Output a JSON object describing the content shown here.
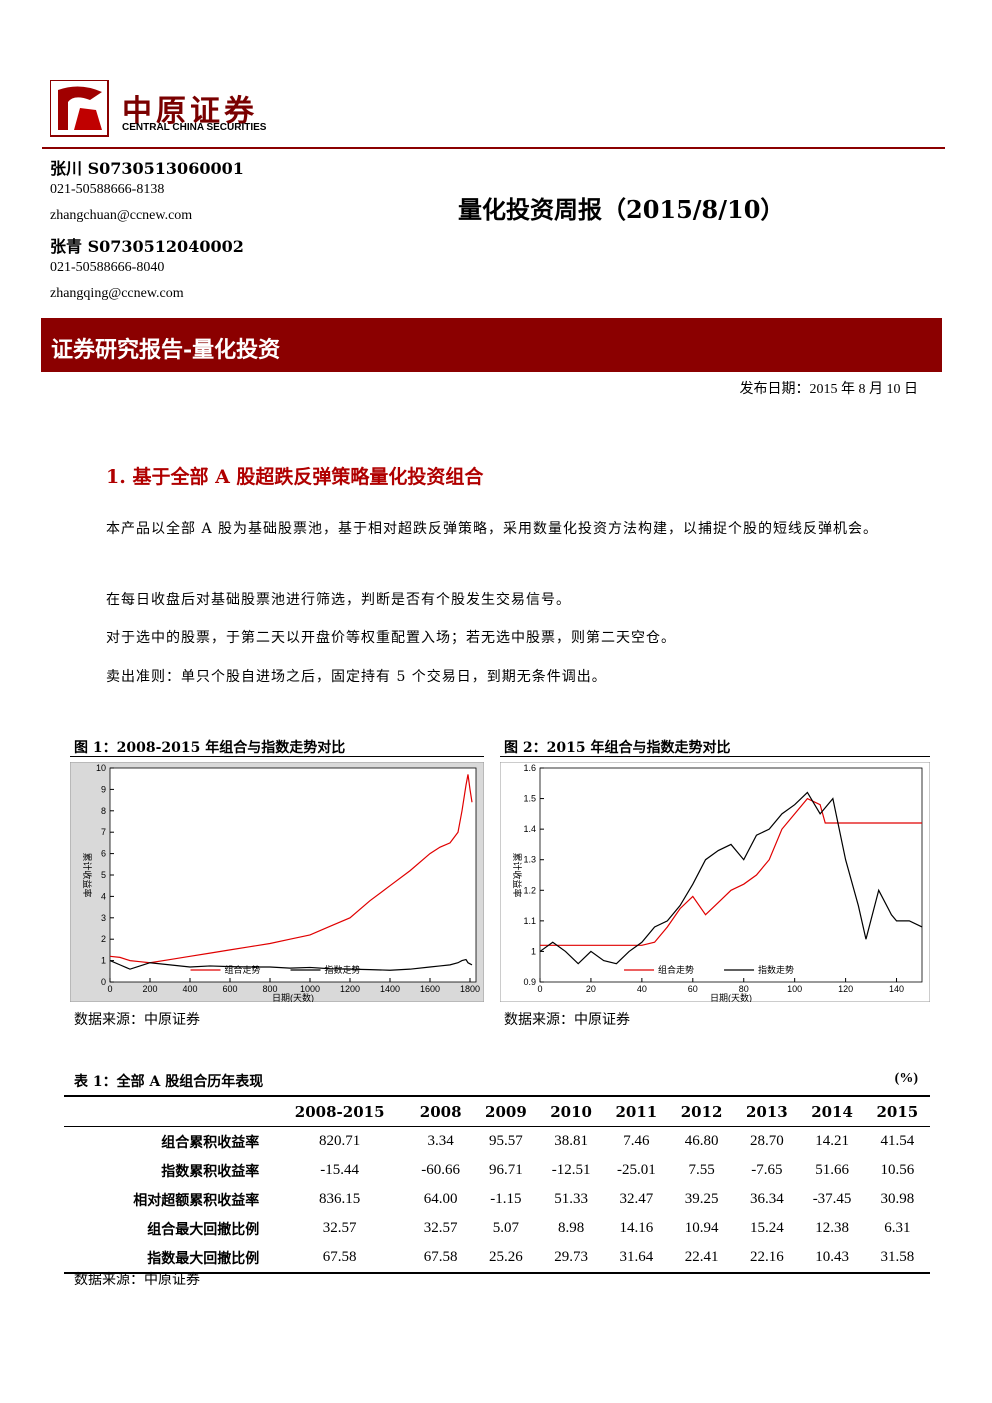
{
  "header": {
    "company_cn": "中原证券",
    "company_en": "CENTRAL CHINA SECURITIES"
  },
  "analysts": [
    {
      "name": "张川 S0730513060001",
      "phone": "021-50588666-8138",
      "email": "zhangchuan@ccnew.com"
    },
    {
      "name": "张青 S0730512040002",
      "phone": "021-50588666-8040",
      "email": "zhangqing@ccnew.com"
    }
  ],
  "report_title": "量化投资周报（2015/8/10）",
  "banner": "证券研究报告-量化投资",
  "publish_date": "发布日期：2015 年 8 月 10 日",
  "section": {
    "heading": "1. 基于全部 A 股超跌反弹策略量化投资组合",
    "paragraphs": [
      "本产品以全部 A 股为基础股票池，基于相对超跌反弹策略，采用数量化投资方法构建，以捕捉个股的短线反弹机会。",
      "在每日收盘后对基础股票池进行筛选，判断是否有个股发生交易信号。",
      "对于选中的股票，于第二天以开盘价等权重配置入场；若无选中股票，则第二天空仓。",
      "卖出准则：单只个股自进场之后，固定持有 5 个交易日，到期无条件调出。"
    ]
  },
  "figures": [
    {
      "caption": "图 1：2008-2015 年组合与指数走势对比",
      "source": "数据来源：中原证券",
      "chart_data": {
        "type": "line",
        "x_label": "日期(天数)",
        "y_label": "累计收益率",
        "x": [
          0,
          50,
          100,
          150,
          200,
          300,
          400,
          500,
          600,
          700,
          800,
          900,
          1000,
          1100,
          1200,
          1300,
          1400,
          1500,
          1600,
          1650,
          1700,
          1740,
          1760,
          1780,
          1790,
          1800,
          1810
        ],
        "series": [
          {
            "name": "组合走势",
            "color": "#e00000",
            "values": [
              1.2,
              1.15,
              1.0,
              0.95,
              0.9,
              1.05,
              1.2,
              1.35,
              1.5,
              1.65,
              1.8,
              2.0,
              2.2,
              2.6,
              3.0,
              3.8,
              4.5,
              5.2,
              6.0,
              6.3,
              6.5,
              7.0,
              8.0,
              9.2,
              9.7,
              9.0,
              8.4
            ]
          },
          {
            "name": "指数走势",
            "color": "#000000",
            "values": [
              1.0,
              0.8,
              0.6,
              0.75,
              0.9,
              0.8,
              0.7,
              0.75,
              0.72,
              0.7,
              0.7,
              0.65,
              0.68,
              0.62,
              0.6,
              0.58,
              0.55,
              0.6,
              0.7,
              0.75,
              0.8,
              0.9,
              1.0,
              1.05,
              0.9,
              0.85,
              0.8
            ]
          }
        ],
        "xlim": [
          0,
          1830
        ],
        "xticks": [
          0,
          200,
          400,
          600,
          800,
          1000,
          1200,
          1400,
          1600,
          1800
        ],
        "ylim": [
          0,
          10
        ],
        "yticks": [
          0,
          1,
          2,
          3,
          4,
          5,
          6,
          7,
          8,
          9,
          10
        ]
      }
    },
    {
      "caption": "图 2：2015 年组合与指数走势对比",
      "source": "数据来源：中原证券",
      "chart_data": {
        "type": "line",
        "x_label": "日期(天数)",
        "y_label": "累计收益率",
        "x": [
          0,
          5,
          10,
          15,
          20,
          25,
          30,
          35,
          40,
          45,
          50,
          55,
          60,
          65,
          70,
          75,
          80,
          85,
          90,
          95,
          100,
          105,
          110,
          112,
          115,
          120,
          125,
          128,
          133,
          138,
          140,
          145,
          150
        ],
        "series": [
          {
            "name": "组合走势",
            "color": "#e00000",
            "values": [
              1.02,
              1.02,
              1.02,
              1.02,
              1.02,
              1.02,
              1.02,
              1.02,
              1.02,
              1.03,
              1.08,
              1.14,
              1.18,
              1.12,
              1.16,
              1.2,
              1.22,
              1.25,
              1.3,
              1.4,
              1.45,
              1.5,
              1.48,
              1.42,
              1.42,
              1.42,
              1.42,
              1.42,
              1.42,
              1.42,
              1.42,
              1.42,
              1.42
            ]
          },
          {
            "name": "指数走势",
            "color": "#000000",
            "values": [
              1.0,
              1.03,
              1.0,
              0.96,
              1.0,
              0.97,
              0.96,
              1.0,
              1.03,
              1.08,
              1.1,
              1.15,
              1.22,
              1.3,
              1.33,
              1.35,
              1.3,
              1.38,
              1.4,
              1.45,
              1.48,
              1.52,
              1.45,
              1.47,
              1.5,
              1.3,
              1.15,
              1.04,
              1.2,
              1.12,
              1.1,
              1.1,
              1.08
            ]
          }
        ],
        "xlim": [
          0,
          150
        ],
        "xticks": [
          0,
          20,
          40,
          60,
          80,
          100,
          120,
          140
        ],
        "ylim": [
          0.9,
          1.6
        ],
        "yticks": [
          0.9,
          1,
          1.1,
          1.2,
          1.3,
          1.4,
          1.5,
          1.6
        ]
      }
    }
  ],
  "table": {
    "caption": "表 1：全部 A 股组合历年表现",
    "unit": "(%)",
    "columns": [
      "2008-2015",
      "2008",
      "2009",
      "2010",
      "2011",
      "2012",
      "2013",
      "2014",
      "2015"
    ],
    "rows": [
      [
        "组合累积收益率",
        "820.71",
        "3.34",
        "95.57",
        "38.81",
        "7.46",
        "46.80",
        "28.70",
        "14.21",
        "41.54"
      ],
      [
        "指数累积收益率",
        "-15.44",
        "-60.66",
        "96.71",
        "-12.51",
        "-25.01",
        "7.55",
        "-7.65",
        "51.66",
        "10.56"
      ],
      [
        "相对超额累积收益率",
        "836.15",
        "64.00",
        "-1.15",
        "51.33",
        "32.47",
        "39.25",
        "36.34",
        "-37.45",
        "30.98"
      ],
      [
        "组合最大回撤比例",
        "32.57",
        "32.57",
        "5.07",
        "8.98",
        "14.16",
        "10.94",
        "15.24",
        "12.38",
        "6.31"
      ],
      [
        "指数最大回撤比例",
        "67.58",
        "67.58",
        "25.26",
        "29.73",
        "31.64",
        "22.41",
        "22.16",
        "10.43",
        "31.58"
      ]
    ],
    "source": "数据来源：中原证券"
  }
}
